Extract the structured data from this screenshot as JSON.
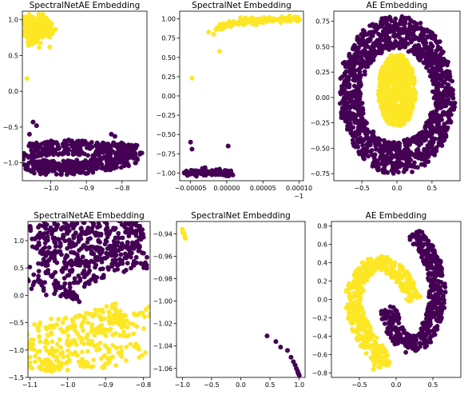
{
  "colors": {
    "class0": "#440154",
    "class1": "#fde725"
  },
  "chart_data": [
    {
      "type": "scatter",
      "title": "SpectralNetAE Embedding",
      "xticks": [
        "−1.0",
        "−0.9",
        "−0.8"
      ],
      "yticks": [
        "1.0",
        "0.5",
        "0.0",
        "−0.5",
        "−1.0"
      ],
      "xlim": [
        -1.08,
        -0.73
      ],
      "ylim": [
        -1.25,
        1.12
      ],
      "xtick_values": [
        -1.0,
        -0.9,
        -0.8
      ],
      "ytick_values": [
        1.0,
        0.5,
        0.0,
        -0.5,
        -1.0
      ],
      "offset_label": "",
      "series": [
        {
          "class": 1,
          "color": "#fde725",
          "shape": "blob",
          "x": [
            -1.063,
            -1.055,
            -1.045,
            -1.035,
            -1.03,
            -1.06,
            -1.048,
            -1.038,
            -1.058,
            -1.028,
            -1.015,
            -1.005,
            -1.064,
            -1.05
          ],
          "y": [
            0.98,
            0.95,
            0.92,
            0.9,
            0.86,
            0.8,
            0.78,
            0.83,
            0.9,
            0.97,
            0.92,
            0.87,
            0.93,
            0.72
          ]
        },
        {
          "class": 1,
          "color": "#fde725",
          "shape": "points",
          "x": [
            -1.003,
            -1.067
          ],
          "y": [
            0.62,
            0.18
          ]
        },
        {
          "class": 0,
          "color": "#440154",
          "shape": "loop",
          "x": [
            -1.06,
            -1.03,
            -0.98,
            -0.93,
            -0.88,
            -0.83,
            -0.79,
            -0.76,
            -0.76,
            -0.8,
            -0.86,
            -0.93,
            -1.0,
            -1.05,
            -1.065,
            -1.06
          ],
          "y": [
            -0.83,
            -0.8,
            -0.79,
            -0.79,
            -0.8,
            -0.81,
            -0.82,
            -0.84,
            -0.9,
            -0.97,
            -1.03,
            -1.06,
            -1.07,
            -1.05,
            -0.97,
            -0.88
          ]
        },
        {
          "class": 0,
          "color": "#440154",
          "shape": "points",
          "x": [
            -1.06,
            -1.05,
            -1.04,
            -0.92,
            -0.83,
            -0.82,
            -0.95,
            -1.055
          ],
          "y": [
            -0.6,
            -0.43,
            -0.48,
            -0.76,
            -0.6,
            -0.63,
            -0.68,
            -1.12
          ]
        }
      ]
    },
    {
      "type": "scatter",
      "title": "SpectralNet Embedding",
      "xticks": [
        "−0.00005",
        "0.00000",
        "0.00005",
        "0.00010"
      ],
      "yticks": [
        "1.00",
        "0.75",
        "0.50",
        "0.25",
        "0.00",
        "−0.25",
        "−0.50",
        "−0.75",
        "−1.00"
      ],
      "xlim": [
        -6.5e-05,
        0.000106
      ],
      "ylim": [
        -1.1,
        1.1
      ],
      "xtick_values": [
        -5e-05,
        0.0,
        5e-05,
        0.0001
      ],
      "ytick_values": [
        1.0,
        0.75,
        0.5,
        0.25,
        0.0,
        -0.25,
        -0.5,
        -0.75,
        -1.0
      ],
      "offset_label": "−1",
      "series": [
        {
          "class": 1,
          "color": "#fde725",
          "shape": "band",
          "x": [
            -1.5e-05,
            0.0,
            2e-05,
            4e-05,
            6e-05,
            8e-05,
            0.0001
          ],
          "y": [
            0.88,
            0.93,
            0.965,
            0.98,
            0.99,
            0.995,
            0.995
          ]
        },
        {
          "class": 1,
          "color": "#fde725",
          "shape": "points",
          "x": [
            -2.5e-05,
            -4.8e-05,
            -1e-05,
            -1.8e-05,
            5e-06
          ],
          "y": [
            0.83,
            0.23,
            0.58,
            0.8,
            0.9
          ]
        },
        {
          "class": 0,
          "color": "#440154",
          "shape": "band",
          "x": [
            -6e-05,
            -4e-05,
            -2e-05,
            0.0,
            5e-06
          ],
          "y": [
            -1.0,
            -1.0,
            -1.0,
            -1.0,
            -1.0
          ]
        },
        {
          "class": 0,
          "color": "#440154",
          "shape": "points",
          "x": [
            -5e-05,
            -4.8e-05,
            2e-06,
            -3e-05,
            -1e-05
          ],
          "y": [
            -0.6,
            -0.69,
            -0.65,
            -0.93,
            -0.95
          ]
        }
      ]
    },
    {
      "type": "scatter",
      "title": "AE Embedding",
      "xticks": [
        "−0.5",
        "0.0",
        "0.5"
      ],
      "yticks": [
        "0.75",
        "0.50",
        "0.25",
        "0.00",
        "−0.25",
        "−0.50",
        "−0.75"
      ],
      "xlim": [
        -0.9,
        0.9
      ],
      "ylim": [
        -0.82,
        0.85
      ],
      "xtick_values": [
        -0.5,
        0.0,
        0.5
      ],
      "ytick_values": [
        0.75,
        0.5,
        0.25,
        0.0,
        -0.25,
        -0.5,
        -0.75
      ],
      "offset_label": "",
      "series": [
        {
          "class": 0,
          "color": "#440154",
          "shape": "ring",
          "x": [
            0.0
          ],
          "y": [
            0.02
          ],
          "r_outer": [
            0.82,
            0.78
          ],
          "r_inner": [
            0.52,
            0.46
          ]
        },
        {
          "class": 1,
          "color": "#fde725",
          "shape": "disc",
          "x": [
            0.0
          ],
          "y": [
            0.07
          ],
          "r": [
            0.27,
            0.36
          ]
        }
      ]
    },
    {
      "type": "scatter",
      "title": "SpectralNetAE Embedding",
      "xticks": [
        "−1.1",
        "−1.0",
        "−0.9",
        "−0.8"
      ],
      "yticks": [
        "1.0",
        "0.5",
        "0.0",
        "−0.5",
        "−1.0",
        "−1.5"
      ],
      "xlim": [
        -1.105,
        -0.782
      ],
      "ylim": [
        -1.5,
        1.35
      ],
      "xtick_values": [
        -1.1,
        -1.0,
        -0.9,
        -0.8
      ],
      "ytick_values": [
        1.0,
        0.5,
        0.0,
        -0.5,
        -1.0,
        -1.5
      ],
      "offset_label": "",
      "series": [
        {
          "class": 0,
          "color": "#440154",
          "shape": "curve",
          "x": [
            -1.08,
            -1.04,
            -1.0,
            -0.96,
            -0.92,
            -0.88,
            -0.84,
            -0.81,
            -0.8,
            -0.83,
            -0.88,
            -0.93,
            -0.97,
            -1.0,
            -1.02,
            -1.04,
            -1.06,
            -1.075,
            -1.085,
            -1.09
          ],
          "y": [
            1.0,
            1.01,
            1.03,
            1.06,
            1.1,
            1.13,
            1.14,
            1.15,
            1.16,
            1.13,
            1.09,
            1.02,
            0.93,
            0.82,
            0.72,
            0.6,
            0.48,
            0.35,
            0.2,
            0.05
          ],
          "width": [
            0.12,
            0.22
          ]
        },
        {
          "class": 1,
          "color": "#fde725",
          "shape": "curve",
          "x": [
            -1.095,
            -1.09,
            -1.07,
            -1.04,
            -1.0,
            -0.96,
            -0.92,
            -0.88,
            -0.85,
            -0.83,
            -0.825,
            -0.83,
            -0.835
          ],
          "y": [
            -1.35,
            -1.1,
            -0.98,
            -0.92,
            -0.86,
            -0.82,
            -0.78,
            -0.74,
            -0.7,
            -0.62,
            -0.5,
            -0.4,
            -0.3
          ],
          "width": [
            0.1,
            0.16
          ]
        },
        {
          "class": 1,
          "color": "#fde725",
          "shape": "points",
          "x": [
            -1.0,
            -0.98,
            -0.92,
            -0.89,
            -1.035
          ],
          "y": [
            -0.82,
            -0.65,
            -0.68,
            -0.48,
            -1.02
          ]
        }
      ]
    },
    {
      "type": "scatter",
      "title": "SpectralNet Embedding",
      "xticks": [
        "−1.0",
        "−0.5",
        "0.0",
        "0.5",
        "1.0"
      ],
      "yticks": [
        "−0.94",
        "−0.96",
        "−0.98",
        "−1.00",
        "−1.02",
        "−1.04",
        "−1.06"
      ],
      "xlim": [
        -1.1,
        1.1
      ],
      "ylim": [
        -1.068,
        -0.929
      ],
      "xtick_values": [
        -1.0,
        -0.5,
        0.0,
        0.5,
        1.0
      ],
      "ytick_values": [
        -0.94,
        -0.96,
        -0.98,
        -1.0,
        -1.02,
        -1.04,
        -1.06
      ],
      "offset_label": "",
      "series": [
        {
          "class": 1,
          "color": "#fde725",
          "shape": "points",
          "x": [
            -1.0,
            -0.99,
            -0.97,
            -0.96,
            -0.99,
            -0.95
          ],
          "y": [
            -0.936,
            -0.938,
            -0.94,
            -0.942,
            -0.939,
            -0.944
          ]
        },
        {
          "class": 0,
          "color": "#440154",
          "shape": "points",
          "x": [
            0.45,
            0.6,
            0.68,
            0.8,
            0.86,
            0.9,
            0.93,
            0.95,
            0.97,
            0.98,
            0.99,
            1.0
          ],
          "y": [
            -1.031,
            -1.036,
            -1.041,
            -1.044,
            -1.05,
            -1.054,
            -1.057,
            -1.06,
            -1.062,
            -1.064,
            -1.065,
            -1.066
          ]
        }
      ]
    },
    {
      "type": "scatter",
      "title": "AE Embedding",
      "xticks": [
        "−0.5",
        "0.0",
        "0.5"
      ],
      "yticks": [
        "0.8",
        "0.6",
        "0.4",
        "0.2",
        "0.0",
        "−0.2",
        "−0.4",
        "−0.6",
        "−0.8"
      ],
      "xlim": [
        -0.88,
        0.88
      ],
      "ylim": [
        -0.85,
        0.85
      ],
      "xtick_values": [
        -0.5,
        0.0,
        0.5
      ],
      "ytick_values": [
        0.8,
        0.6,
        0.4,
        0.2,
        0.0,
        -0.2,
        -0.4,
        -0.6,
        -0.8
      ],
      "offset_label": "",
      "series": [
        {
          "class": 0,
          "color": "#440154",
          "shape": "curve",
          "x": [
            0.25,
            0.33,
            0.43,
            0.51,
            0.55,
            0.56,
            0.54,
            0.49,
            0.41,
            0.31,
            0.2,
            0.1,
            0.0,
            -0.07,
            -0.1
          ],
          "y": [
            0.73,
            0.64,
            0.52,
            0.37,
            0.22,
            0.06,
            -0.1,
            -0.25,
            -0.38,
            -0.47,
            -0.5,
            -0.46,
            -0.36,
            -0.22,
            -0.08
          ],
          "width": [
            0.12,
            0.14
          ]
        },
        {
          "class": 1,
          "color": "#fde725",
          "shape": "curve",
          "x": [
            0.25,
            0.18,
            0.08,
            -0.04,
            -0.17,
            -0.3,
            -0.42,
            -0.52,
            -0.58,
            -0.57,
            -0.5,
            -0.41,
            -0.32,
            -0.25,
            -0.21,
            -0.21,
            -0.2
          ],
          "y": [
            0.0,
            0.12,
            0.24,
            0.34,
            0.39,
            0.39,
            0.33,
            0.21,
            0.05,
            -0.12,
            -0.28,
            -0.42,
            -0.52,
            -0.6,
            -0.67,
            -0.72,
            -0.74
          ],
          "width": [
            0.1,
            0.16
          ]
        }
      ]
    }
  ]
}
